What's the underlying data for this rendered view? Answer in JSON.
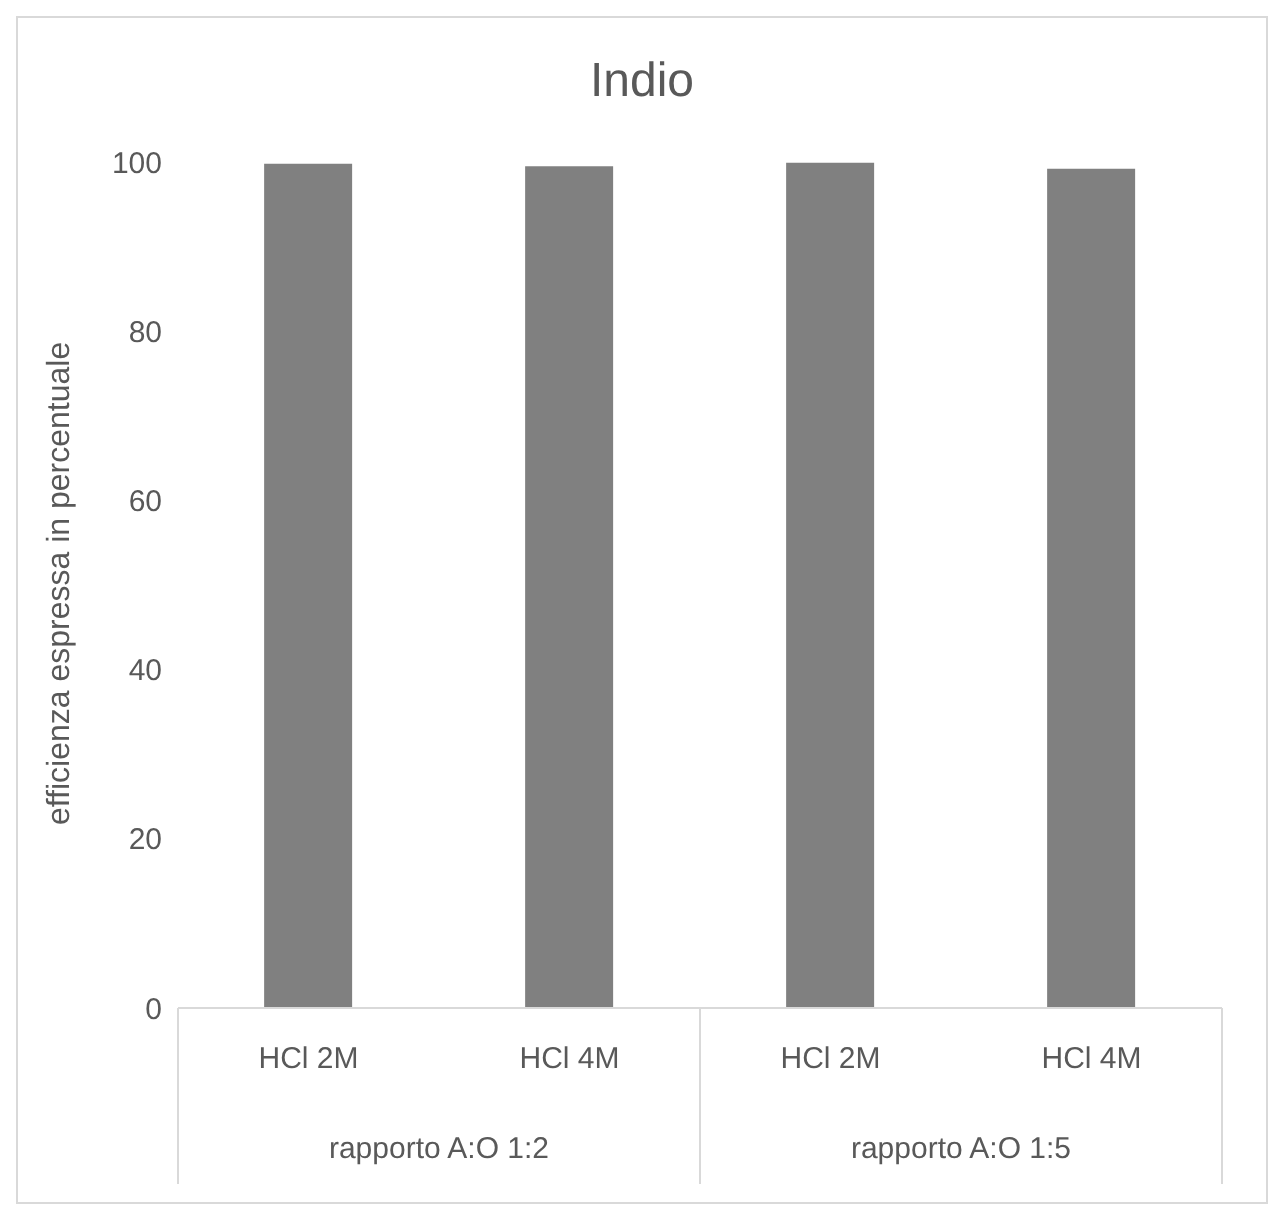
{
  "chart_data": {
    "type": "bar",
    "title": "Indio",
    "ylabel": "efficienza espressa in percentuale",
    "categories": [
      "HCl 2M",
      "HCl 4M",
      "HCl 2M",
      "HCl 4M"
    ],
    "values": [
      99.8,
      99.5,
      99.9,
      99.2
    ],
    "color": "#808080",
    "ylim": [
      0,
      100
    ],
    "yticks": [
      0,
      20,
      40,
      60,
      80,
      100
    ],
    "grid": false,
    "annotations": [
      "rapporto A:O 1:2",
      "rapporto A:O 1:5"
    ]
  }
}
